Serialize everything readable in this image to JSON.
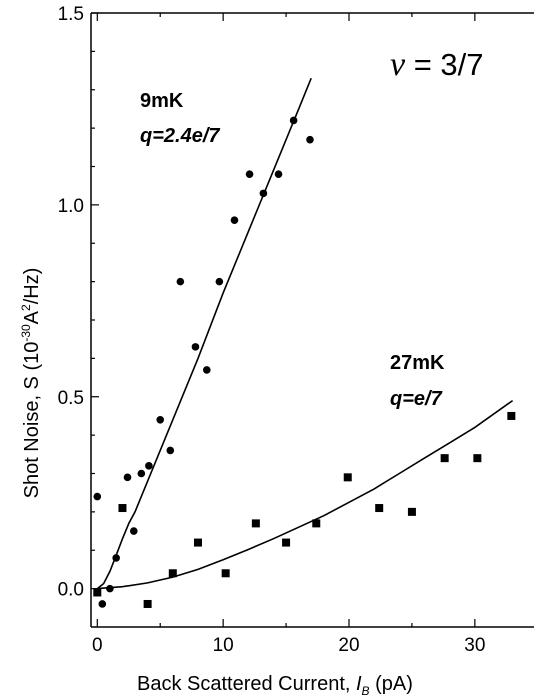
{
  "chart_data": {
    "type": "scatter",
    "xlabel": "Back Scattered Current, I_B (pA)",
    "ylabel": "Shot Noise, S  (10^-30 A^2/Hz)",
    "xlabel_parts": {
      "text": "Back Scattered Current, ",
      "var": "I",
      "sub": "B",
      "unit": " (pA)"
    },
    "ylabel_parts": {
      "text": "Shot Noise, S  (10",
      "exp1": "-30",
      "mid": "A",
      "exp2": "2",
      "tail": "/Hz)"
    },
    "xlim": [
      -0.5,
      34.7
    ],
    "ylim": [
      -0.1,
      1.5
    ],
    "xticks": [
      0,
      10,
      20,
      30
    ],
    "xtick_labels": [
      "0",
      "10",
      "20",
      "30"
    ],
    "yticks": [
      0.0,
      0.5,
      1.0,
      1.5
    ],
    "ytick_labels": [
      "0.0",
      "0.5",
      "1.0",
      "1.5"
    ],
    "grid": false,
    "legend": "none",
    "annotation": {
      "nu_symbol": "ν",
      "nu_text": " = 3/7"
    },
    "series": [
      {
        "name": "9mK",
        "label": "9mK",
        "charge": "q=2.4e/7",
        "marker": "circle",
        "x": [
          0.0,
          0.4,
          1.0,
          1.5,
          2.4,
          2.9,
          3.5,
          4.1,
          5.0,
          5.8,
          6.6,
          7.8,
          8.7,
          9.7,
          10.9,
          12.1,
          13.2,
          14.4,
          15.6,
          16.9
        ],
        "y": [
          0.24,
          -0.04,
          0.0,
          0.08,
          0.29,
          0.15,
          0.3,
          0.32,
          0.44,
          0.36,
          0.8,
          0.63,
          0.57,
          0.8,
          0.96,
          1.08,
          1.03,
          1.08,
          1.22,
          1.17
        ]
      },
      {
        "name": "27mK",
        "label": "27mK",
        "charge": "q=e/7",
        "marker": "square",
        "x": [
          0.0,
          2.0,
          4.0,
          6.0,
          8.0,
          10.2,
          12.6,
          15.0,
          17.4,
          19.9,
          22.4,
          25.0,
          27.6,
          30.2,
          32.9
        ],
        "y": [
          -0.01,
          0.21,
          -0.04,
          0.04,
          0.12,
          0.04,
          0.17,
          0.12,
          0.17,
          0.29,
          0.21,
          0.2,
          0.34,
          0.34,
          0.45
        ]
      }
    ],
    "fit_curves": [
      {
        "series": "9mK",
        "x": [
          0.0,
          0.5,
          1.0,
          1.5,
          2.0,
          2.5,
          3.0,
          4.0,
          6.0,
          8.0,
          10.0,
          12.0,
          14.0,
          16.0,
          17.0
        ],
        "y": [
          0.0,
          0.013,
          0.045,
          0.087,
          0.13,
          0.17,
          0.2,
          0.28,
          0.44,
          0.6,
          0.77,
          0.93,
          1.09,
          1.25,
          1.33
        ]
      },
      {
        "series": "27mK",
        "x": [
          0.0,
          2.0,
          4.0,
          6.0,
          8.0,
          10.0,
          12.0,
          14.0,
          16.0,
          18.0,
          20.0,
          22.0,
          24.0,
          26.0,
          28.0,
          30.0,
          33.0
        ],
        "y": [
          0.0,
          0.005,
          0.015,
          0.03,
          0.05,
          0.075,
          0.102,
          0.13,
          0.16,
          0.19,
          0.225,
          0.26,
          0.3,
          0.34,
          0.38,
          0.42,
          0.49
        ]
      }
    ]
  }
}
